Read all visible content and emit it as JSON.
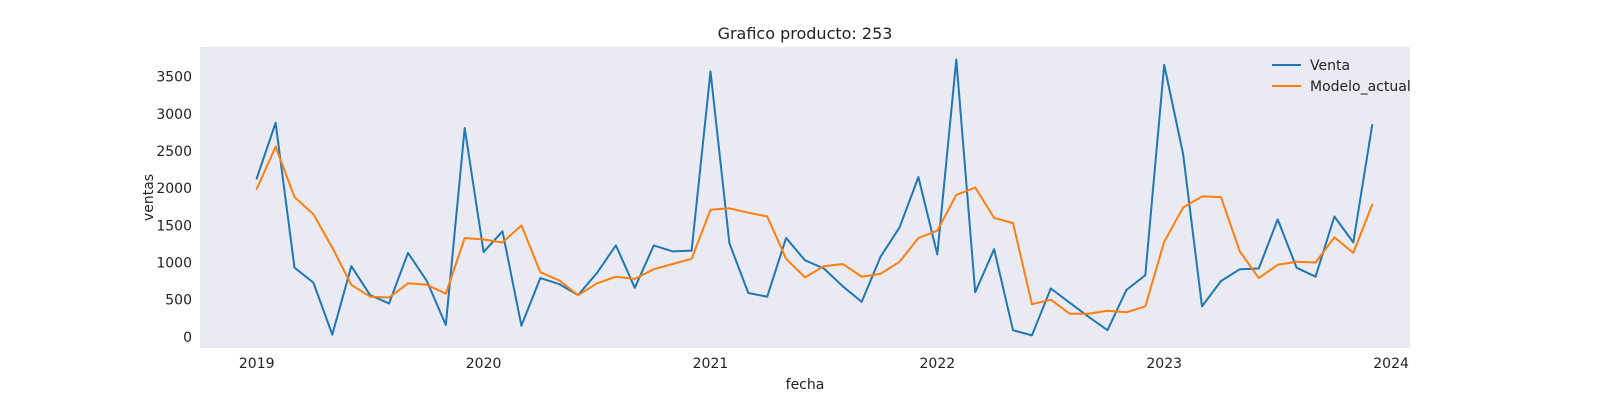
{
  "chart_data": {
    "type": "line",
    "title": "Grafico producto: 253",
    "xlabel": "fecha",
    "ylabel": "ventas",
    "x_start": "2019-01",
    "x_interval": "monthly",
    "xlim": [
      "2018-10",
      "2024-02"
    ],
    "ylim": [
      -150,
      3900
    ],
    "x_ticks": [
      "2019",
      "2020",
      "2021",
      "2022",
      "2023",
      "2024"
    ],
    "y_ticks": [
      0,
      500,
      1000,
      1500,
      2000,
      2500,
      3000,
      3500
    ],
    "grid": false,
    "legend": "top-right",
    "plot_background": "#eaeaf2",
    "series": [
      {
        "name": "Venta",
        "color": "#1f77b4",
        "values": [
          2130,
          2880,
          930,
          730,
          30,
          950,
          560,
          450,
          1130,
          750,
          160,
          2810,
          1140,
          1420,
          150,
          790,
          710,
          560,
          860,
          1230,
          660,
          1230,
          1150,
          1160,
          3570,
          1260,
          590,
          540,
          1330,
          1030,
          920,
          680,
          470,
          1080,
          1470,
          2150,
          1110,
          3730,
          600,
          1180,
          90,
          20,
          650,
          460,
          270,
          90,
          630,
          830,
          3660,
          2460,
          410,
          750,
          910,
          920,
          1580,
          930,
          810,
          1620,
          1270,
          2850
        ]
      },
      {
        "name": "Modelo_actual",
        "color": "#ff7f0e",
        "values": [
          1990,
          2560,
          1880,
          1650,
          1200,
          700,
          540,
          530,
          720,
          700,
          580,
          1330,
          1310,
          1270,
          1500,
          870,
          760,
          560,
          720,
          810,
          780,
          910,
          980,
          1050,
          1710,
          1730,
          1670,
          1620,
          1050,
          800,
          950,
          980,
          810,
          850,
          1010,
          1330,
          1430,
          1910,
          2010,
          1600,
          1530,
          440,
          500,
          310,
          310,
          350,
          330,
          410,
          1280,
          1740,
          1890,
          1880,
          1150,
          790,
          970,
          1010,
          1000,
          1340,
          1130,
          1780
        ]
      }
    ]
  }
}
